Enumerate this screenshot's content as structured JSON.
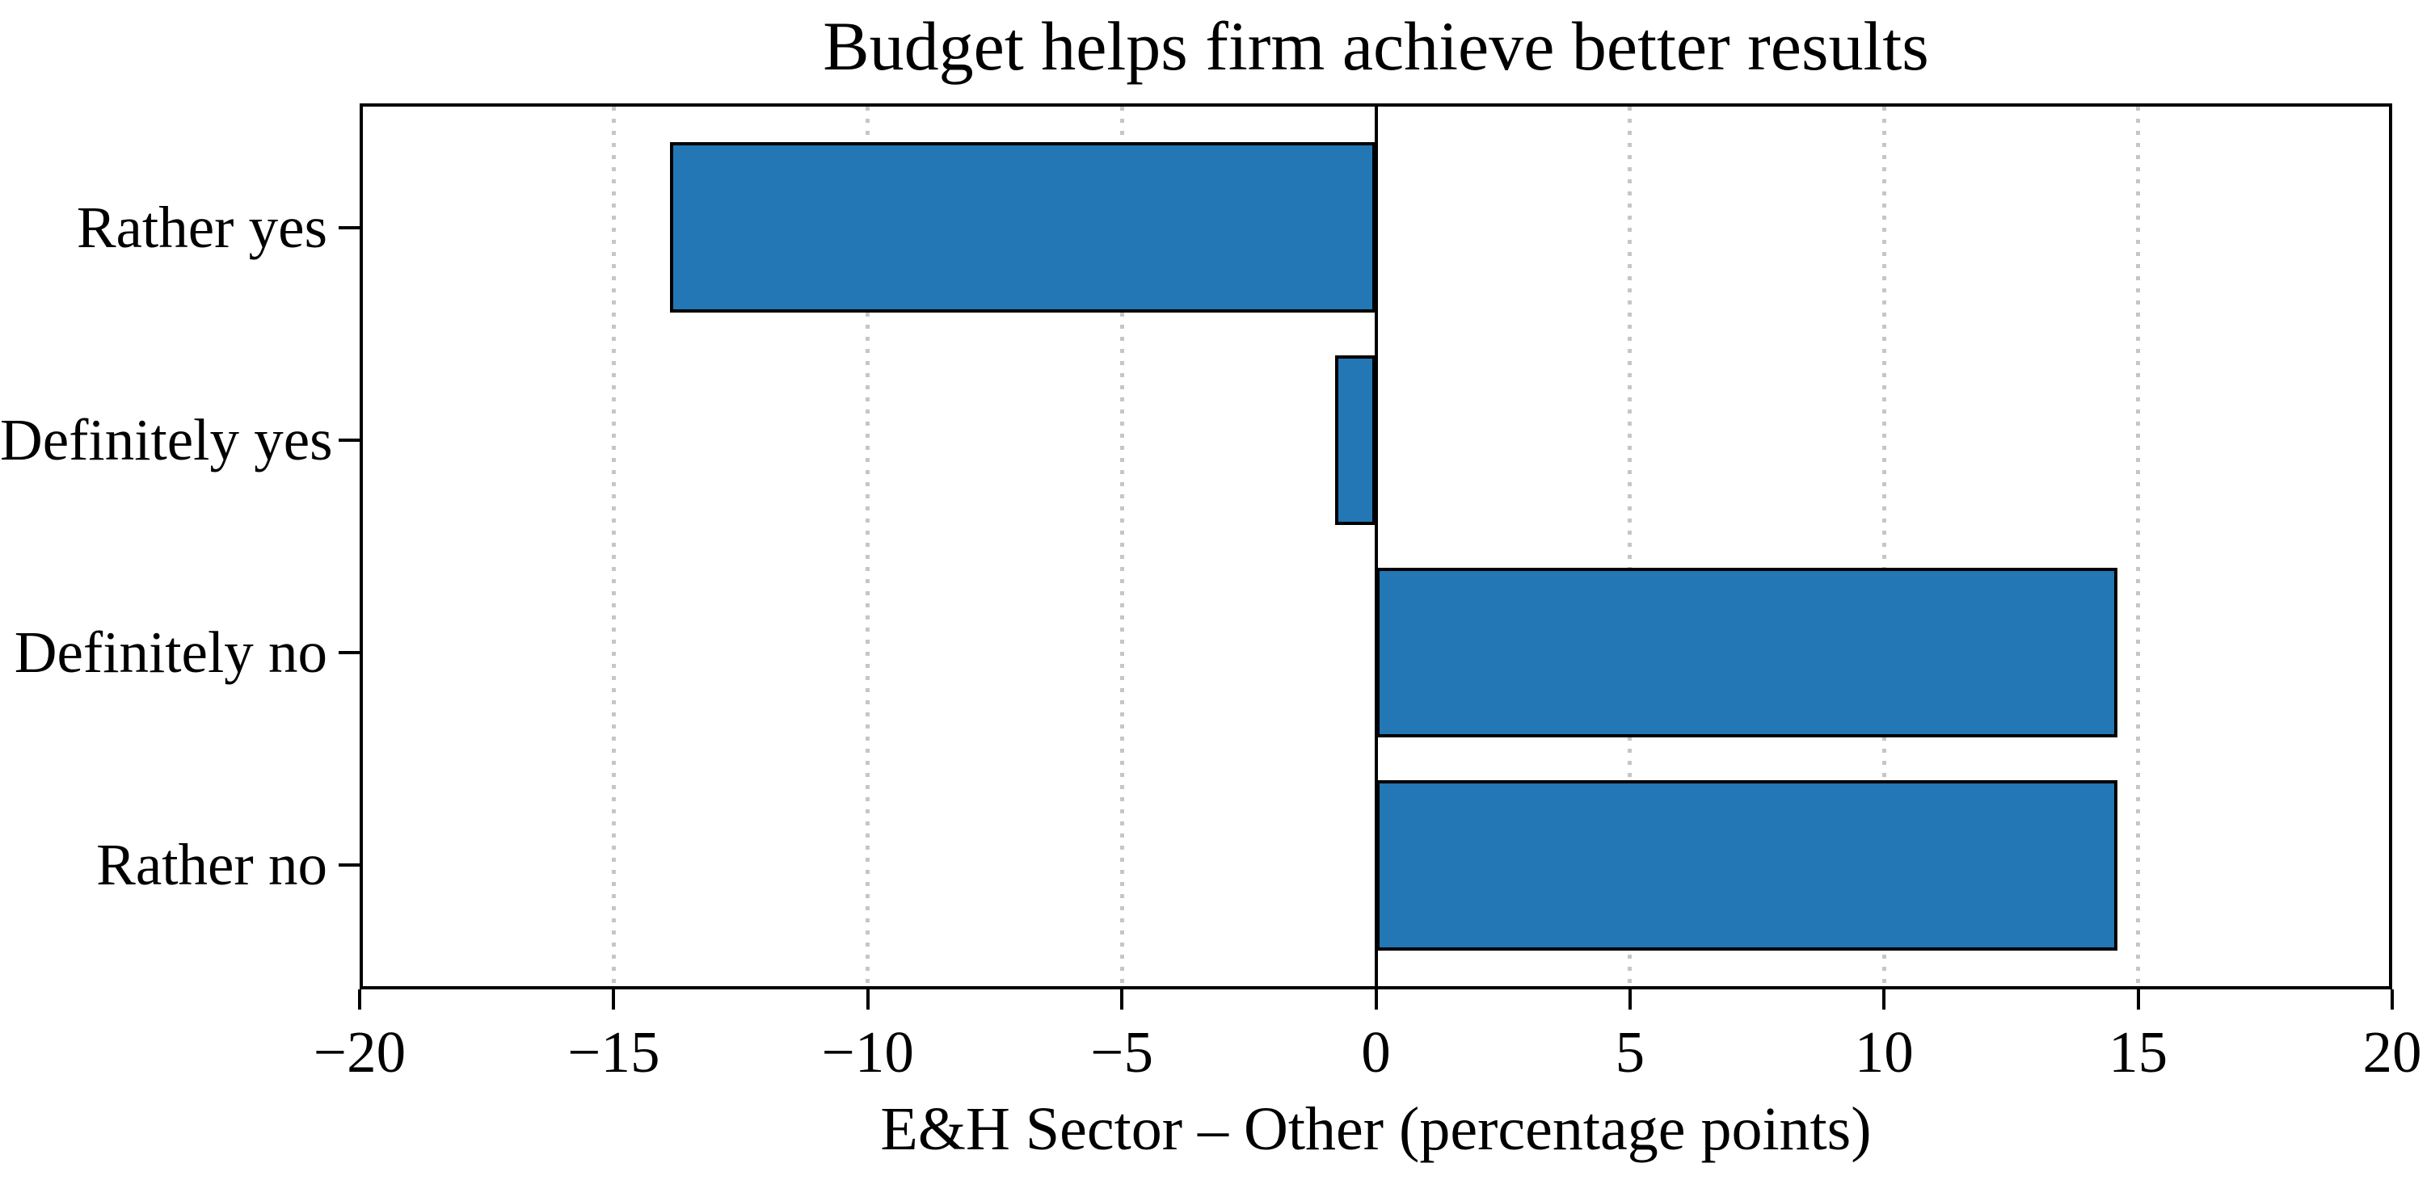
{
  "chart_data": {
    "type": "bar",
    "orientation": "horizontal",
    "title": "Budget helps firm achieve better results",
    "xlabel": "E&H Sector – Other (percentage points)",
    "categories": [
      "Rather yes",
      "Definitely yes",
      "Definitely no",
      "Rather no"
    ],
    "values": [
      -13.9,
      -0.8,
      14.6,
      14.6
    ],
    "xlim": [
      -20,
      20
    ],
    "xticks": [
      -20,
      -15,
      -10,
      -5,
      0,
      5,
      10,
      15,
      20
    ],
    "xtick_labels": [
      "−20",
      "−15",
      "−10",
      "−5",
      "0",
      "5",
      "10",
      "15",
      "20"
    ],
    "grid": "vertical-dotted-at-xticks",
    "zero_line": true,
    "legend": null,
    "bar_color": "#2277b4",
    "bar_edge_color": "#000000",
    "grid_color": "#c6c6c6",
    "text_color": "#000000"
  }
}
